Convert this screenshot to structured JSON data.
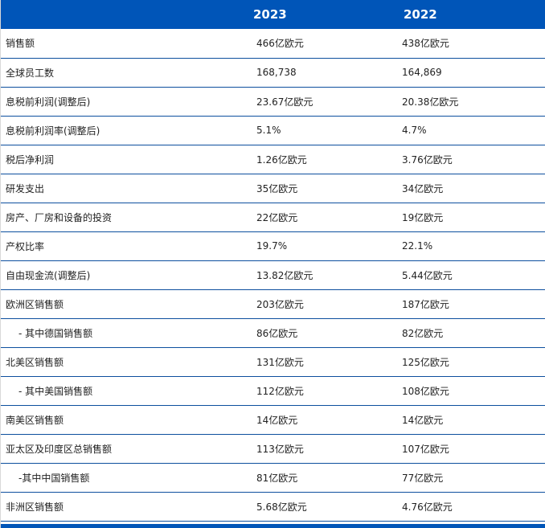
{
  "header": {
    "col_label": "",
    "year_1": "2023",
    "year_2": "2022"
  },
  "rows": [
    {
      "label": "销售额",
      "v2023": "466亿欧元",
      "v2022": "438亿欧元"
    },
    {
      "label": "全球员工数",
      "v2023": "168,738",
      "v2022": "164,869"
    },
    {
      "label": "息税前利润(调整后)",
      "v2023": "23.67亿欧元",
      "v2022": "20.38亿欧元"
    },
    {
      "label": "息税前利润率(调整后)",
      "v2023": "5.1%",
      "v2022": "4.7%"
    },
    {
      "label": "税后净利润",
      "v2023": "1.26亿欧元",
      "v2022": "3.76亿欧元"
    },
    {
      "label": "研发支出",
      "v2023": "35亿欧元",
      "v2022": "34亿欧元"
    },
    {
      "label": "房产、厂房和设备的投资",
      "v2023": "22亿欧元",
      "v2022": "19亿欧元"
    },
    {
      "label": "产权比率",
      "v2023": "19.7%",
      "v2022": "22.1%"
    },
    {
      "label": "自由现金流(调整后)",
      "v2023": "13.82亿欧元",
      "v2022": "5.44亿欧元"
    },
    {
      "label": "欧洲区销售额",
      "v2023": "203亿欧元",
      "v2022": "187亿欧元"
    },
    {
      "label": "- 其中德国销售额",
      "v2023": "86亿欧元",
      "v2022": "82亿欧元"
    },
    {
      "label": "北美区销售额",
      "v2023": "131亿欧元",
      "v2022": "125亿欧元"
    },
    {
      "label": "- 其中美国销售额",
      "v2023": "112亿欧元",
      "v2022": "108亿欧元"
    },
    {
      "label": "南美区销售额",
      "v2023": "14亿欧元",
      "v2022": "14亿欧元"
    },
    {
      "label": "亚太区及印度区总销售额",
      "v2023": "113亿欧元",
      "v2022": "107亿欧元"
    },
    {
      "label": "-其中中国销售额",
      "v2023": "81亿欧元",
      "v2022": "77亿欧元"
    },
    {
      "label": "非洲区销售额",
      "v2023": "5.68亿欧元",
      "v2022": "4.76亿欧元"
    }
  ],
  "colors": {
    "header_bg": "#0055b8",
    "row_divider": "#0d4f9e",
    "text": "#222222"
  }
}
